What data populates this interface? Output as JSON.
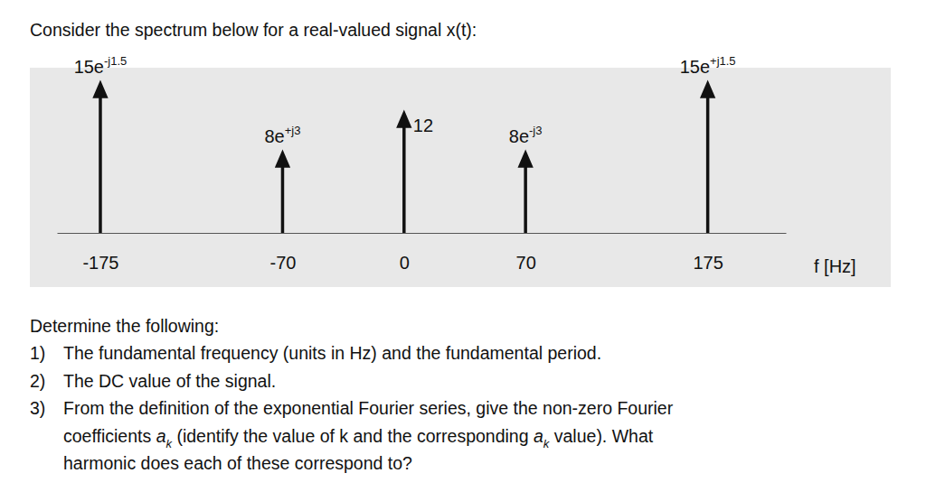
{
  "intro": "Consider the spectrum below for a real-valued signal x(t):",
  "chart_data": {
    "type": "stem",
    "x": [
      -175,
      -70,
      0,
      70,
      175
    ],
    "values": [
      15,
      8,
      12,
      8,
      15
    ],
    "value_labels": [
      "15e-j1.5",
      "8e+j3",
      "12",
      "8e-j3",
      "15e+j1.5"
    ],
    "data_labels": true,
    "color": "#111111",
    "xlim": [
      -200,
      220
    ],
    "xticks": [
      -175,
      -70,
      0,
      70,
      175
    ],
    "ylim": [
      0,
      17
    ],
    "tick_labels": "x",
    "xlabel": "f [Hz]"
  },
  "questions": {
    "heading": "Determine the following:",
    "items": [
      {
        "number": "1)",
        "lines": [
          [
            {
              "text": "The fundamental frequency (units in Hz) and the fundamental period."
            }
          ]
        ]
      },
      {
        "number": "2)",
        "lines": [
          [
            {
              "text": "The DC value of the signal."
            }
          ]
        ]
      },
      {
        "number": "3)",
        "lines": [
          [
            {
              "text": "From the definition of the exponential Fourier series, give the non-zero Fourier"
            }
          ],
          [
            {
              "text": "coefficients "
            },
            {
              "italic": "a",
              "sub": "k"
            },
            {
              "text": " (identify the value of k and the corresponding "
            },
            {
              "italic": "a",
              "sub": "k"
            },
            {
              "text": " value). What"
            }
          ],
          [
            {
              "text": "harmonic does each of these correspond to?"
            }
          ]
        ]
      }
    ]
  }
}
